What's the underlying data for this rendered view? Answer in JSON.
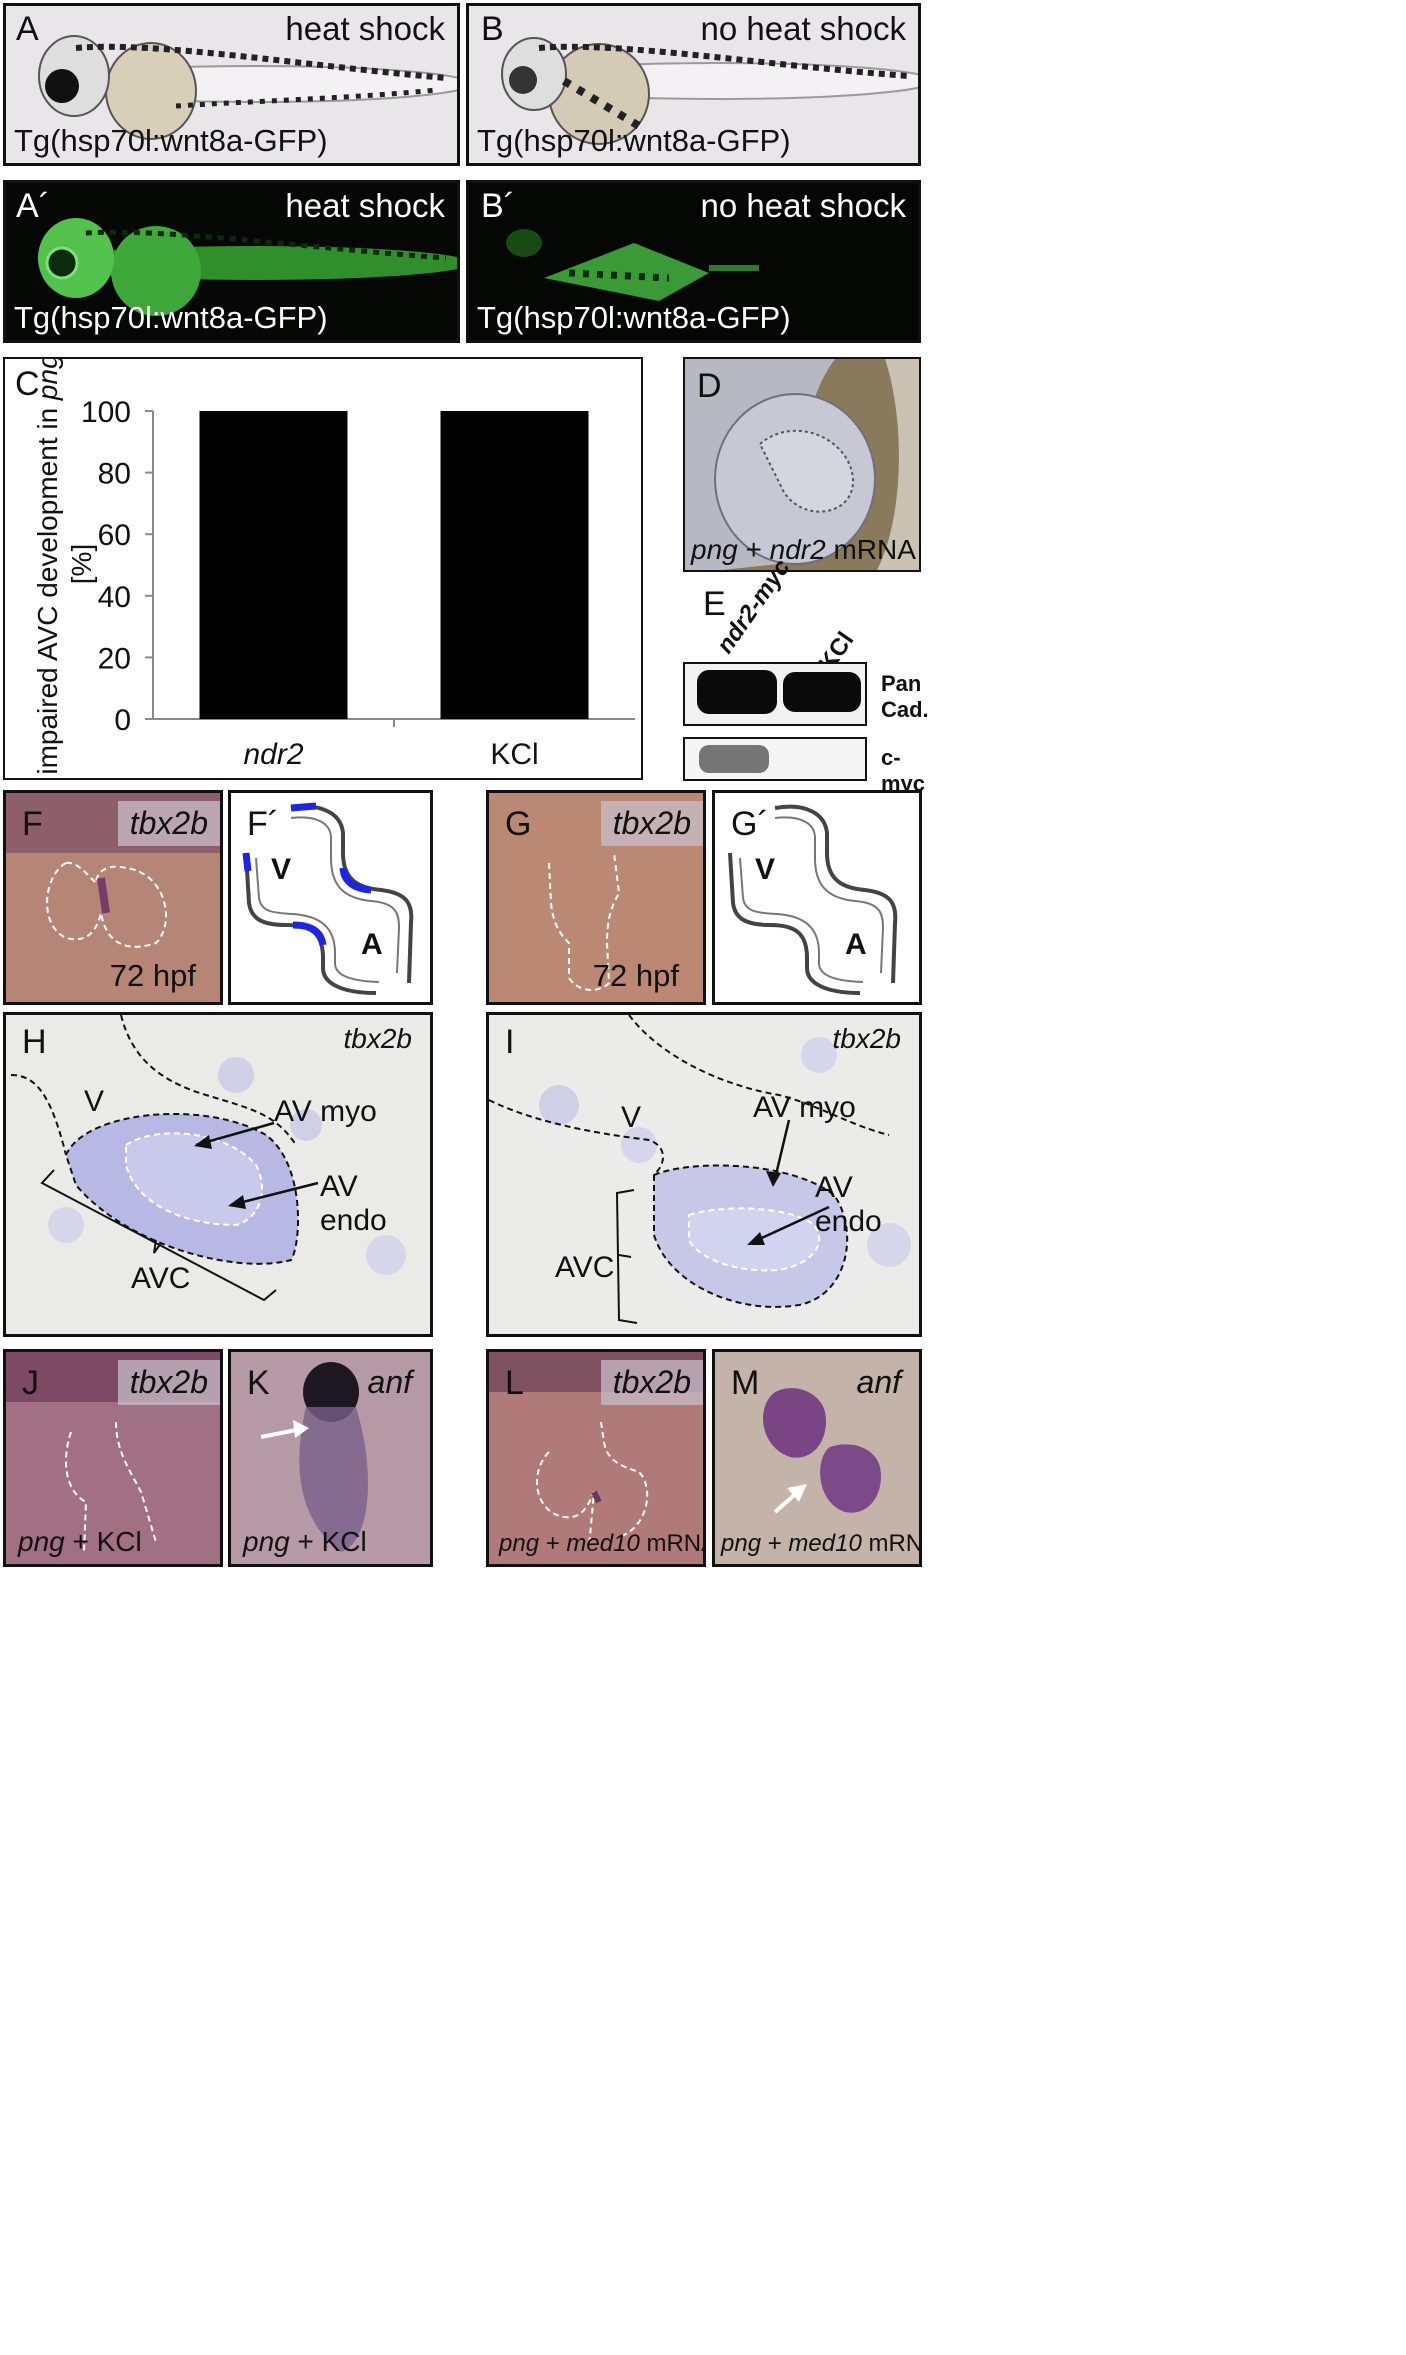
{
  "panels": {
    "A": {
      "label": "A",
      "condition": "heat shock",
      "caption": "Tg(hsp70l:wnt8a-GFP)"
    },
    "B": {
      "label": "B",
      "condition": "no heat shock",
      "caption": "Tg(hsp70l:wnt8a-GFP)"
    },
    "A2": {
      "label": "A´",
      "condition": "heat shock",
      "caption": "Tg(hsp70l:wnt8a-GFP)"
    },
    "B2": {
      "label": "B´",
      "condition": "no heat shock",
      "caption": "Tg(hsp70l:wnt8a-GFP)"
    },
    "C": {
      "label": "C"
    },
    "D": {
      "label": "D",
      "caption_italic1": "png",
      "caption_plus": " + ",
      "caption_italic2": "ndr2",
      "caption_rest": " mRNA"
    },
    "E": {
      "label": "E",
      "lane1": "ndr2-myc",
      "lane2": "KCl",
      "row1_line1": "Pan",
      "row1_line2": "Cad.",
      "row2": "c-myc"
    },
    "F": {
      "label": "F",
      "probe": "tbx2b",
      "stage": "72 hpf"
    },
    "F2": {
      "label": "F´",
      "v": "V",
      "a": "A"
    },
    "G": {
      "label": "G",
      "probe": "tbx2b",
      "stage": "72 hpf"
    },
    "G2": {
      "label": "G´",
      "v": "V",
      "a": "A"
    },
    "H": {
      "label": "H",
      "probe": "tbx2b",
      "v": "V",
      "myo": "AV myo",
      "endo": "AV endo",
      "avc": "AVC"
    },
    "I": {
      "label": "I",
      "probe": "tbx2b",
      "v": "V",
      "myo": "AV myo",
      "endo": "AV endo",
      "avc": "AVC"
    },
    "J": {
      "label": "J",
      "probe": "tbx2b",
      "cap_it": "png",
      "cap_rest": " + KCl"
    },
    "K": {
      "label": "K",
      "probe": "anf",
      "cap_it": "png",
      "cap_rest": " + KCl"
    },
    "L": {
      "label": "L",
      "probe": "tbx2b",
      "cap_it1": "png",
      "cap_plus": " + ",
      "cap_it2": "med10",
      "cap_rest": " mRNA"
    },
    "M": {
      "label": "M",
      "probe": "anf",
      "cap_it1": "png",
      "cap_plus": " + ",
      "cap_it2": "med10",
      "cap_rest": " mRNA"
    }
  },
  "chart_data": {
    "type": "bar",
    "categories": [
      "ndr2",
      "KCl"
    ],
    "values": [
      100,
      100
    ],
    "ylabel_line1": "impaired AVC development in ",
    "ylabel_italic": "png",
    "ylabel_line2": "[%]",
    "ylim": [
      0,
      100
    ],
    "yticks": [
      "0",
      "20",
      "40",
      "60",
      "80",
      "100"
    ],
    "bar_color": "#000000"
  }
}
